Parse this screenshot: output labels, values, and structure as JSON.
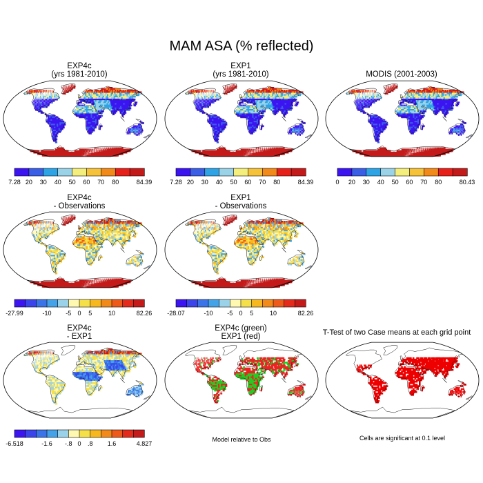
{
  "title": "MAM ASA (% reflected)",
  "colorbars": {
    "seq": [
      "#3c14f2",
      "#3a5ee6",
      "#2ea4e6",
      "#9ad2e8",
      "#f4ee7c",
      "#f6c23a",
      "#f28a1a",
      "#e8201a",
      "#c41a1a"
    ],
    "diff": [
      "#3c14f2",
      "#3a44ea",
      "#3a74e8",
      "#44a2e8",
      "#9ad2ea",
      "#fff8b0",
      "#f6e04a",
      "#f6b81e",
      "#f28a1a",
      "#ee5a1a",
      "#e42a1a",
      "#c41a1a"
    ]
  },
  "chart_data": [
    {
      "type": "heatmap",
      "id": "p1",
      "title": [
        "EXP4c",
        "(yrs 1981-2010)"
      ],
      "colorbar_labels": [
        "7.28",
        "20",
        "30",
        "40",
        "50",
        "60",
        "70",
        "80",
        "84.39"
      ]
    },
    {
      "type": "heatmap",
      "id": "p2",
      "title": [
        "EXP1",
        "(yrs 1981-2010)"
      ],
      "colorbar_labels": [
        "7.28",
        "20",
        "30",
        "40",
        "50",
        "60",
        "70",
        "80",
        "84.39"
      ]
    },
    {
      "type": "heatmap",
      "id": "p3",
      "title": [
        "MODIS (2001-2003)"
      ],
      "colorbar_labels": [
        "0",
        "20",
        "30",
        "40",
        "50",
        "60",
        "70",
        "80",
        "80.43"
      ]
    },
    {
      "type": "heatmap",
      "id": "p4",
      "title": [
        "EXP4c",
        "- Observations"
      ],
      "colorbar_labels": [
        "-27.99",
        "-10",
        "-5",
        "0",
        "5",
        "10",
        "82.26"
      ]
    },
    {
      "type": "heatmap",
      "id": "p5",
      "title": [
        "EXP1",
        "- Observations"
      ],
      "colorbar_labels": [
        "-28.07",
        "-10",
        "-5",
        "0",
        "5",
        "10",
        "82.26"
      ]
    },
    {
      "type": "heatmap",
      "id": "p6",
      "title": [
        "EXP4c",
        "- EXP1"
      ],
      "colorbar_labels": [
        "-6.518",
        "-1.6",
        "-.8",
        "0",
        ".8",
        "1.6",
        "4.827"
      ]
    },
    {
      "type": "heatmap",
      "id": "p7",
      "title": [
        "EXP4c (green)",
        "EXP1 (red)"
      ],
      "note": "Model relative to Obs",
      "legend": [
        {
          "name": "EXP4c",
          "color": "#22cc22"
        },
        {
          "name": "EXP1",
          "color": "#ee2222"
        }
      ]
    },
    {
      "type": "heatmap",
      "id": "p8",
      "title": [
        "T-Test of two Case means at each grid point"
      ],
      "note": "Cells are significant at 0.1 level",
      "significance_color": "#ee0000"
    }
  ]
}
